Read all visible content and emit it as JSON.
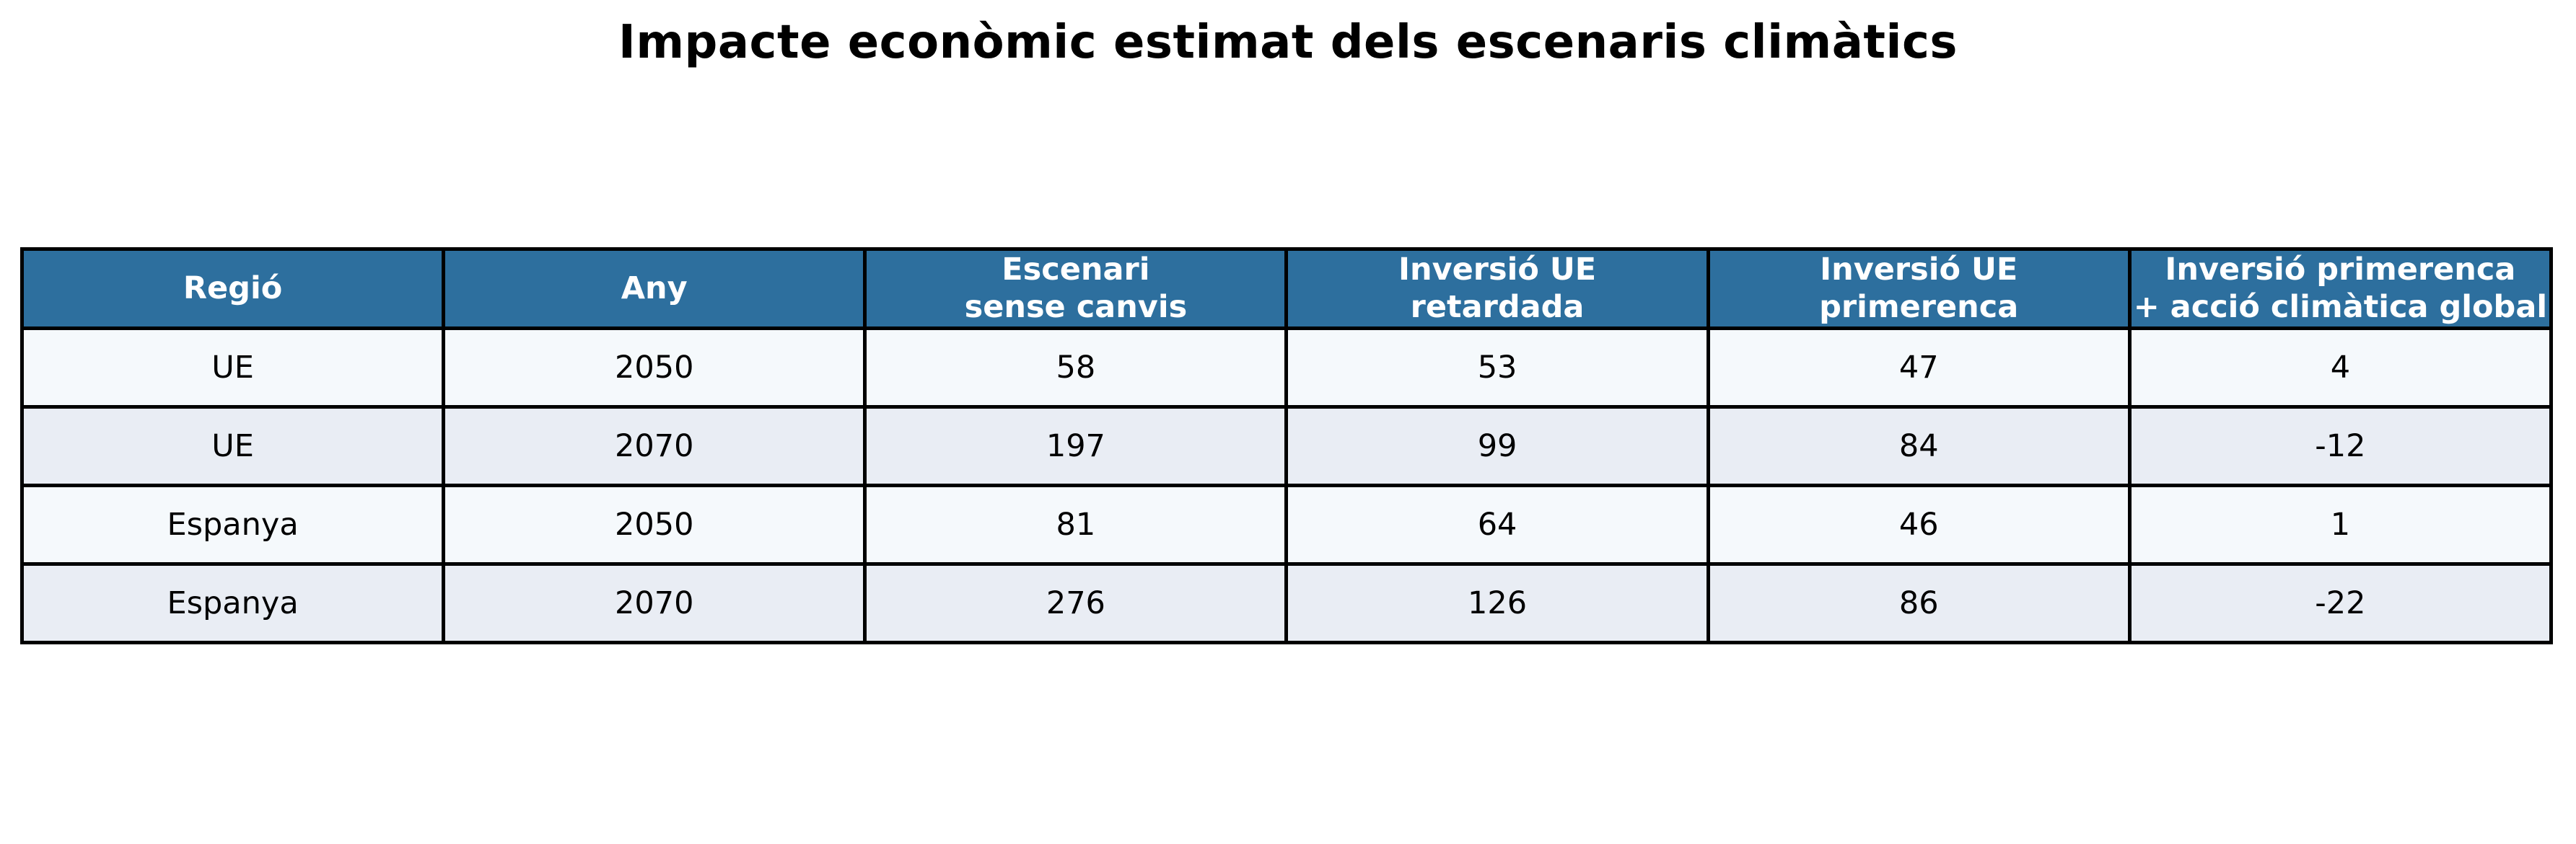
{
  "title": "Impacte econòmic estimat dels escenaris climàtics",
  "chart_data": {
    "type": "table",
    "title": "Impacte econòmic estimat dels escenaris climàtics",
    "columns": [
      "Regió",
      "Any",
      "Escenari\nsense canvis",
      "Inversió UE\nretardada",
      "Inversió UE\nprimerenca",
      "Inversió primerenca\n+ acció climàtica global"
    ],
    "rows": [
      [
        "UE",
        "2050",
        "58",
        "53",
        "47",
        "4"
      ],
      [
        "UE",
        "2070",
        "197",
        "99",
        "84",
        "-12"
      ],
      [
        "Espanya",
        "2050",
        "81",
        "64",
        "46",
        "1"
      ],
      [
        "Espanya",
        "2070",
        "276",
        "126",
        "86",
        "-22"
      ]
    ],
    "layout": {
      "grid": true,
      "header_position": "top",
      "column_count": 6,
      "row_count": 4
    }
  },
  "colors": {
    "header_bg": "#2d6f9e",
    "header_text": "#ffffff",
    "row_odd": "#f5f9fc",
    "row_even": "#e9edf4",
    "border": "#000000",
    "body_text": "#000000",
    "title_text": "#000000",
    "page_bg": "#ffffff"
  }
}
